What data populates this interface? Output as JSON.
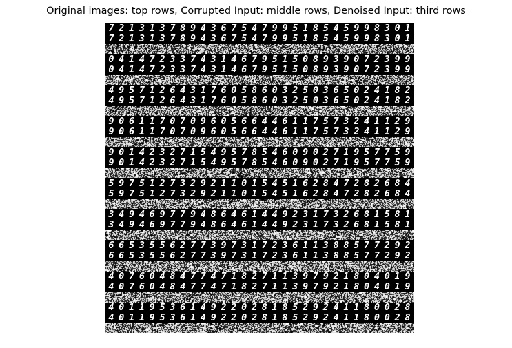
{
  "title": "Original images: top rows, Corrupted Input: middle rows, Denoised Input:  third rows",
  "digit_rows": [
    "721313789436754799518545998301",
    "721313789436754799518545998301",
    "041472337431467951508939072399",
    "041472337431467951508939072399",
    "495712643176058603250365024182",
    "495712643176058603250365024182",
    "906117070960566446117573241129",
    "906117070960566446117573241129",
    "901423271549578546090271957759",
    "901423271549578546090271957759",
    "597512732921101545162847282684",
    "597512732921101545162847282684",
    "349469779486461449231732681581",
    "349469779486461449231732681581",
    "665355627739731723611388577292",
    "665355627739731723611388577292",
    "407604847747182711397921804019",
    "407604847747182711397921804019",
    "401195361492202818529241180028",
    "401195361492202818529241180028"
  ],
  "colors": {
    "background": "#000000",
    "digit": "#ffffff",
    "noise": "#ffffff"
  }
}
